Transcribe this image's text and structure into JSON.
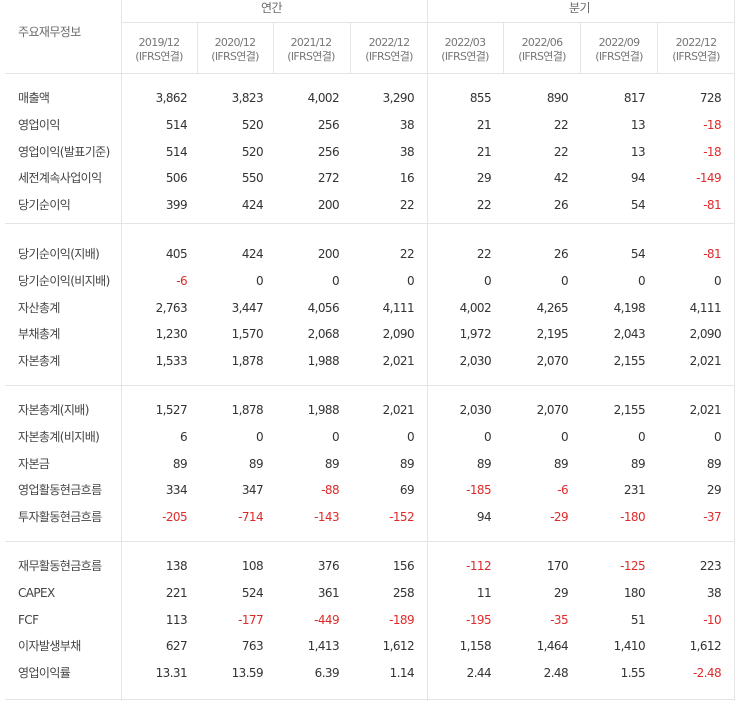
{
  "header": {
    "corner_label": "주요재무정보",
    "group_annual": "연간",
    "group_quarterly": "분기",
    "periods": [
      {
        "date": "2019/12",
        "basis": "(IFRS연결)"
      },
      {
        "date": "2020/12",
        "basis": "(IFRS연결)"
      },
      {
        "date": "2021/12",
        "basis": "(IFRS연결)"
      },
      {
        "date": "2022/12",
        "basis": "(IFRS연결)"
      },
      {
        "date": "2022/03",
        "basis": "(IFRS연결)"
      },
      {
        "date": "2022/06",
        "basis": "(IFRS연결)"
      },
      {
        "date": "2022/09",
        "basis": "(IFRS연결)"
      },
      {
        "date": "2022/12",
        "basis": "(IFRS연결)"
      }
    ]
  },
  "colors": {
    "negative": "#e02a2a",
    "text": "#333333",
    "border": "#e4e4e4"
  },
  "groups": [
    [
      {
        "label": "매출액",
        "values": [
          "3,862",
          "3,823",
          "4,002",
          "3,290",
          "855",
          "890",
          "817",
          "728"
        ]
      },
      {
        "label": "영업이익",
        "values": [
          "514",
          "520",
          "256",
          "38",
          "21",
          "22",
          "13",
          "-18"
        ]
      },
      {
        "label": "영업이익(발표기준)",
        "values": [
          "514",
          "520",
          "256",
          "38",
          "21",
          "22",
          "13",
          "-18"
        ]
      },
      {
        "label": "세전계속사업이익",
        "values": [
          "506",
          "550",
          "272",
          "16",
          "29",
          "42",
          "94",
          "-149"
        ]
      },
      {
        "label": "당기순이익",
        "values": [
          "399",
          "424",
          "200",
          "22",
          "22",
          "26",
          "54",
          "-81"
        ]
      }
    ],
    [
      {
        "label": "당기순이익(지배)",
        "values": [
          "405",
          "424",
          "200",
          "22",
          "22",
          "26",
          "54",
          "-81"
        ]
      },
      {
        "label": "당기순이익(비지배)",
        "values": [
          "-6",
          "0",
          "0",
          "0",
          "0",
          "0",
          "0",
          "0"
        ]
      },
      {
        "label": "자산총계",
        "values": [
          "2,763",
          "3,447",
          "4,056",
          "4,111",
          "4,002",
          "4,265",
          "4,198",
          "4,111"
        ]
      },
      {
        "label": "부채총계",
        "values": [
          "1,230",
          "1,570",
          "2,068",
          "2,090",
          "1,972",
          "2,195",
          "2,043",
          "2,090"
        ]
      },
      {
        "label": "자본총계",
        "values": [
          "1,533",
          "1,878",
          "1,988",
          "2,021",
          "2,030",
          "2,070",
          "2,155",
          "2,021"
        ]
      }
    ],
    [
      {
        "label": "자본총계(지배)",
        "values": [
          "1,527",
          "1,878",
          "1,988",
          "2,021",
          "2,030",
          "2,070",
          "2,155",
          "2,021"
        ]
      },
      {
        "label": "자본총계(비지배)",
        "values": [
          "6",
          "0",
          "0",
          "0",
          "0",
          "0",
          "0",
          "0"
        ]
      },
      {
        "label": "자본금",
        "values": [
          "89",
          "89",
          "89",
          "89",
          "89",
          "89",
          "89",
          "89"
        ]
      },
      {
        "label": "영업활동현금흐름",
        "values": [
          "334",
          "347",
          "-88",
          "69",
          "-185",
          "-6",
          "231",
          "29"
        ]
      },
      {
        "label": "투자활동현금흐름",
        "values": [
          "-205",
          "-714",
          "-143",
          "-152",
          "94",
          "-29",
          "-180",
          "-37"
        ]
      }
    ],
    [
      {
        "label": "재무활동현금흐름",
        "values": [
          "138",
          "108",
          "376",
          "156",
          "-112",
          "170",
          "-125",
          "223"
        ]
      },
      {
        "label": "CAPEX",
        "values": [
          "221",
          "524",
          "361",
          "258",
          "11",
          "29",
          "180",
          "38"
        ]
      },
      {
        "label": "FCF",
        "values": [
          "113",
          "-177",
          "-449",
          "-189",
          "-195",
          "-35",
          "51",
          "-10"
        ]
      },
      {
        "label": "이자발생부채",
        "values": [
          "627",
          "763",
          "1,413",
          "1,612",
          "1,158",
          "1,464",
          "1,410",
          "1,612"
        ]
      },
      {
        "label": "영업이익률",
        "values": [
          "13.31",
          "13.59",
          "6.39",
          "1.14",
          "2.44",
          "2.48",
          "1.55",
          "-2.48"
        ]
      }
    ]
  ]
}
